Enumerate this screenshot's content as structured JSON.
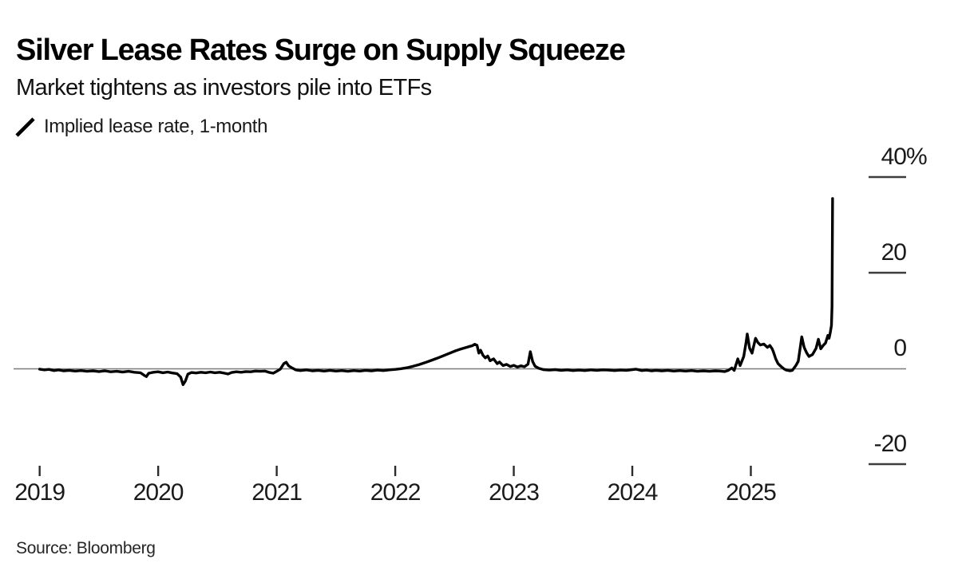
{
  "header": {
    "title": "Silver Lease Rates Surge on Supply Squeeze",
    "subtitle": "Market tightens as investors pile into ETFs"
  },
  "legend": {
    "label": "Implied lease rate, 1-month",
    "marker": "slash-icon"
  },
  "footer": {
    "source": "Source: Bloomberg"
  },
  "colors": {
    "line": "#000000",
    "zero_line": "#7a7a7a",
    "axis_dash": "#3d3d3d",
    "axis_tick": "#2b2b2b",
    "text": "#1a1a1a",
    "background": "#ffffff"
  },
  "chart_data": {
    "type": "line",
    "title": "Silver Lease Rates Surge on Supply Squeeze",
    "subtitle": "Market tightens as investors pile into ETFs",
    "xlabel": "",
    "ylabel": "Implied lease rate, %",
    "y_axis_side": "right",
    "grid": false,
    "legend_position": "top-left",
    "xlim": [
      2018.78,
      2026.31
    ],
    "ylim": [
      -27,
      42
    ],
    "x_ticks": [
      2019,
      2020,
      2021,
      2022,
      2023,
      2024,
      2025
    ],
    "y_ticks": [
      {
        "value": 40,
        "label": "40",
        "suffix": "%"
      },
      {
        "value": 20,
        "label": "20",
        "suffix": ""
      },
      {
        "value": 0,
        "label": "0",
        "suffix": ""
      },
      {
        "value": -20,
        "label": "-20",
        "suffix": ""
      }
    ],
    "series": [
      {
        "name": "Implied lease rate, 1-month",
        "points": [
          [
            2019.0,
            -0.15
          ],
          [
            2019.04,
            -0.3
          ],
          [
            2019.08,
            -0.2
          ],
          [
            2019.12,
            -0.45
          ],
          [
            2019.16,
            -0.3
          ],
          [
            2019.2,
            -0.5
          ],
          [
            2019.25,
            -0.4
          ],
          [
            2019.3,
            -0.55
          ],
          [
            2019.35,
            -0.45
          ],
          [
            2019.4,
            -0.6
          ],
          [
            2019.45,
            -0.5
          ],
          [
            2019.5,
            -0.65
          ],
          [
            2019.55,
            -0.5
          ],
          [
            2019.6,
            -0.7
          ],
          [
            2019.65,
            -0.6
          ],
          [
            2019.7,
            -0.75
          ],
          [
            2019.75,
            -0.6
          ],
          [
            2019.8,
            -0.8
          ],
          [
            2019.85,
            -0.9
          ],
          [
            2019.88,
            -1.4
          ],
          [
            2019.9,
            -1.7
          ],
          [
            2019.92,
            -1.0
          ],
          [
            2019.96,
            -0.8
          ],
          [
            2020.0,
            -0.7
          ],
          [
            2020.04,
            -0.9
          ],
          [
            2020.08,
            -0.75
          ],
          [
            2020.12,
            -0.95
          ],
          [
            2020.16,
            -1.1
          ],
          [
            2020.19,
            -1.8
          ],
          [
            2020.21,
            -3.4
          ],
          [
            2020.23,
            -2.6
          ],
          [
            2020.25,
            -1.2
          ],
          [
            2020.28,
            -0.85
          ],
          [
            2020.32,
            -0.95
          ],
          [
            2020.36,
            -0.8
          ],
          [
            2020.4,
            -0.9
          ],
          [
            2020.44,
            -0.75
          ],
          [
            2020.48,
            -0.9
          ],
          [
            2020.52,
            -0.8
          ],
          [
            2020.56,
            -1.0
          ],
          [
            2020.59,
            -1.15
          ],
          [
            2020.62,
            -0.85
          ],
          [
            2020.66,
            -0.7
          ],
          [
            2020.7,
            -0.8
          ],
          [
            2020.74,
            -0.65
          ],
          [
            2020.78,
            -0.7
          ],
          [
            2020.82,
            -0.55
          ],
          [
            2020.86,
            -0.6
          ],
          [
            2020.9,
            -0.55
          ],
          [
            2020.94,
            -0.85
          ],
          [
            2020.97,
            -1.0
          ],
          [
            2021.0,
            -0.6
          ],
          [
            2021.03,
            -0.15
          ],
          [
            2021.06,
            1.0
          ],
          [
            2021.08,
            1.3
          ],
          [
            2021.1,
            0.55
          ],
          [
            2021.13,
            0.1
          ],
          [
            2021.16,
            -0.3
          ],
          [
            2021.2,
            -0.45
          ],
          [
            2021.25,
            -0.3
          ],
          [
            2021.3,
            -0.5
          ],
          [
            2021.35,
            -0.4
          ],
          [
            2021.4,
            -0.55
          ],
          [
            2021.45,
            -0.4
          ],
          [
            2021.5,
            -0.55
          ],
          [
            2021.55,
            -0.45
          ],
          [
            2021.6,
            -0.6
          ],
          [
            2021.65,
            -0.45
          ],
          [
            2021.7,
            -0.55
          ],
          [
            2021.75,
            -0.4
          ],
          [
            2021.8,
            -0.5
          ],
          [
            2021.85,
            -0.35
          ],
          [
            2021.9,
            -0.45
          ],
          [
            2021.95,
            -0.3
          ],
          [
            2022.0,
            -0.2
          ],
          [
            2022.05,
            -0.05
          ],
          [
            2022.1,
            0.15
          ],
          [
            2022.15,
            0.45
          ],
          [
            2022.2,
            0.8
          ],
          [
            2022.25,
            1.2
          ],
          [
            2022.3,
            1.65
          ],
          [
            2022.35,
            2.1
          ],
          [
            2022.4,
            2.6
          ],
          [
            2022.45,
            3.1
          ],
          [
            2022.5,
            3.6
          ],
          [
            2022.54,
            3.95
          ],
          [
            2022.58,
            4.25
          ],
          [
            2022.62,
            4.55
          ],
          [
            2022.65,
            4.75
          ],
          [
            2022.67,
            5.05
          ],
          [
            2022.69,
            4.85
          ],
          [
            2022.705,
            3.2
          ],
          [
            2022.72,
            3.8
          ],
          [
            2022.74,
            2.75
          ],
          [
            2022.76,
            2.2
          ],
          [
            2022.78,
            2.6
          ],
          [
            2022.8,
            1.6
          ],
          [
            2022.83,
            2.0
          ],
          [
            2022.86,
            1.0
          ],
          [
            2022.88,
            1.35
          ],
          [
            2022.91,
            0.6
          ],
          [
            2022.94,
            0.85
          ],
          [
            2022.97,
            0.4
          ],
          [
            2023.0,
            0.65
          ],
          [
            2023.03,
            0.3
          ],
          [
            2023.06,
            0.55
          ],
          [
            2023.09,
            0.35
          ],
          [
            2023.12,
            0.9
          ],
          [
            2023.14,
            3.5
          ],
          [
            2023.16,
            1.4
          ],
          [
            2023.18,
            0.45
          ],
          [
            2023.21,
            0.05
          ],
          [
            2023.25,
            -0.25
          ],
          [
            2023.3,
            -0.35
          ],
          [
            2023.35,
            -0.25
          ],
          [
            2023.4,
            -0.4
          ],
          [
            2023.45,
            -0.3
          ],
          [
            2023.5,
            -0.45
          ],
          [
            2023.55,
            -0.35
          ],
          [
            2023.6,
            -0.45
          ],
          [
            2023.65,
            -0.3
          ],
          [
            2023.7,
            -0.4
          ],
          [
            2023.75,
            -0.3
          ],
          [
            2023.8,
            -0.35
          ],
          [
            2023.85,
            -0.45
          ],
          [
            2023.9,
            -0.35
          ],
          [
            2023.95,
            -0.4
          ],
          [
            2024.0,
            -0.25
          ],
          [
            2024.03,
            -0.15
          ],
          [
            2024.08,
            -0.45
          ],
          [
            2024.12,
            -0.35
          ],
          [
            2024.16,
            -0.5
          ],
          [
            2024.2,
            -0.4
          ],
          [
            2024.25,
            -0.5
          ],
          [
            2024.3,
            -0.4
          ],
          [
            2024.35,
            -0.55
          ],
          [
            2024.4,
            -0.45
          ],
          [
            2024.45,
            -0.55
          ],
          [
            2024.5,
            -0.45
          ],
          [
            2024.55,
            -0.6
          ],
          [
            2024.6,
            -0.5
          ],
          [
            2024.65,
            -0.6
          ],
          [
            2024.7,
            -0.5
          ],
          [
            2024.74,
            -0.55
          ],
          [
            2024.78,
            -0.65
          ],
          [
            2024.81,
            -0.4
          ],
          [
            2024.84,
            0.1
          ],
          [
            2024.86,
            -0.4
          ],
          [
            2024.89,
            2.0
          ],
          [
            2024.91,
            0.6
          ],
          [
            2024.94,
            2.5
          ],
          [
            2024.96,
            5.5
          ],
          [
            2024.97,
            7.2
          ],
          [
            2024.99,
            4.2
          ],
          [
            2025.01,
            3.2
          ],
          [
            2025.04,
            6.3
          ],
          [
            2025.06,
            5.4
          ],
          [
            2025.08,
            4.9
          ],
          [
            2025.11,
            5.1
          ],
          [
            2025.14,
            4.4
          ],
          [
            2025.16,
            4.8
          ],
          [
            2025.18,
            4.1
          ],
          [
            2025.19,
            3.5
          ],
          [
            2025.21,
            2.0
          ],
          [
            2025.23,
            1.0
          ],
          [
            2025.26,
            0.3
          ],
          [
            2025.28,
            -0.1
          ],
          [
            2025.3,
            -0.35
          ],
          [
            2025.33,
            -0.5
          ],
          [
            2025.35,
            -0.4
          ],
          [
            2025.38,
            0.6
          ],
          [
            2025.4,
            1.5
          ],
          [
            2025.43,
            6.6
          ],
          [
            2025.45,
            4.4
          ],
          [
            2025.47,
            3.3
          ],
          [
            2025.49,
            2.5
          ],
          [
            2025.52,
            2.9
          ],
          [
            2025.55,
            4.2
          ],
          [
            2025.57,
            6.1
          ],
          [
            2025.59,
            4.1
          ],
          [
            2025.61,
            4.8
          ],
          [
            2025.63,
            5.3
          ],
          [
            2025.65,
            6.9
          ],
          [
            2025.66,
            6.3
          ],
          [
            2025.67,
            7.5
          ],
          [
            2025.68,
            9.0
          ],
          [
            2025.685,
            13.0
          ],
          [
            2025.69,
            35.5
          ]
        ]
      }
    ]
  }
}
